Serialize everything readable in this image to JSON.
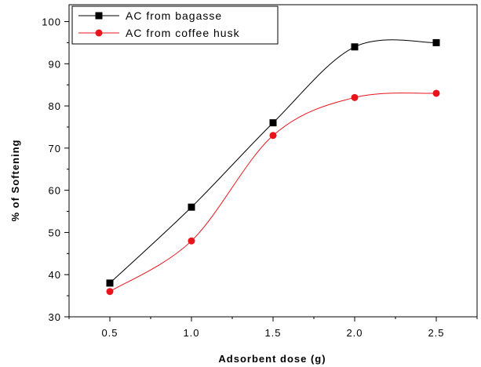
{
  "chart_data": {
    "type": "line",
    "title": "",
    "xlabel": "Adsorbent dose (g)",
    "ylabel": "% of Softening",
    "x": [
      0.5,
      1.0,
      1.5,
      2.0,
      2.5
    ],
    "x_tick_labels": [
      "0.5",
      "1.0",
      "1.5",
      "2.0",
      "2.5"
    ],
    "y_tick_labels": [
      "30",
      "40",
      "50",
      "60",
      "70",
      "80",
      "90",
      "100"
    ],
    "xlim": [
      0.25,
      2.75
    ],
    "ylim": [
      30,
      104
    ],
    "grid": false,
    "legend_position": "top-left",
    "series": [
      {
        "name": "AC from bagasse",
        "values": [
          38,
          56,
          76,
          94,
          95
        ],
        "color": "#000000",
        "marker": "square"
      },
      {
        "name": "AC from coffee husk",
        "values": [
          36,
          48,
          73,
          82,
          83
        ],
        "color": "#e8141c",
        "marker": "circle"
      }
    ]
  }
}
